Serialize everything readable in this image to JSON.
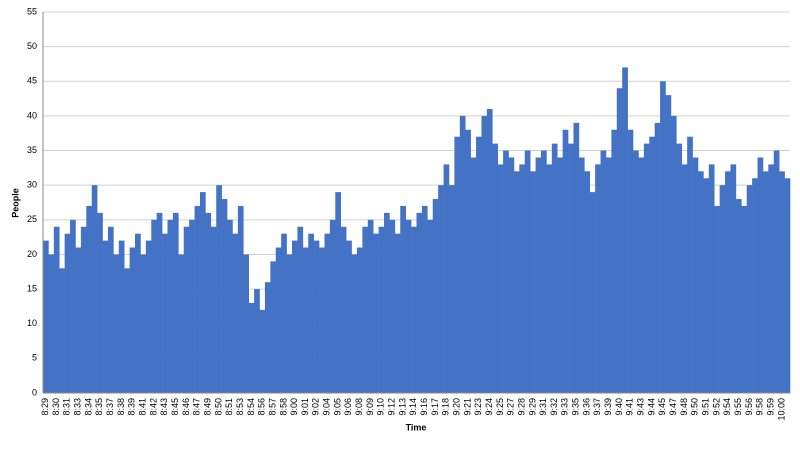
{
  "chart_data": {
    "type": "bar",
    "x_label": "Time",
    "y_label": "People",
    "categories": [
      "8:29",
      null,
      "8:30",
      null,
      "8:31",
      null,
      "8:33",
      null,
      "8:34",
      null,
      "8:35",
      null,
      "8:37",
      null,
      "8:38",
      null,
      "8:39",
      null,
      "8:41",
      null,
      "8:42",
      null,
      "8:43",
      null,
      "8:45",
      null,
      "8:46",
      null,
      "8:47",
      null,
      "8:49",
      null,
      "8:50",
      null,
      "8:51",
      null,
      "8:53",
      null,
      "8:54",
      null,
      "8:56",
      null,
      "8:57",
      null,
      "8:58",
      null,
      "9:00",
      null,
      "9:01",
      null,
      "9:02",
      null,
      "9:04",
      null,
      "9:05",
      null,
      "9:06",
      null,
      "9:08",
      null,
      "9:09",
      null,
      "9:10",
      null,
      "9:12",
      null,
      "9:13",
      null,
      "9:14",
      null,
      "9:16",
      null,
      "9:17",
      null,
      "9:18",
      null,
      "9:20",
      null,
      "9:21",
      null,
      "9:23",
      null,
      "9:24",
      null,
      "9:25",
      null,
      "9:27",
      null,
      "9:28",
      null,
      "9:29",
      null,
      "9:31",
      null,
      "9:32",
      null,
      "9:33",
      null,
      "9:35",
      null,
      "9:36",
      null,
      "9:37",
      null,
      "9:39",
      null,
      "9:40",
      null,
      "9:41",
      null,
      "9:43",
      null,
      "9:44",
      null,
      "9:45",
      null,
      "9:47",
      null,
      "9:48",
      null,
      "9:50",
      null,
      "9:51",
      null,
      "9:52",
      null,
      "9:54",
      null,
      "9:55",
      null,
      "9:56",
      null,
      "9:58",
      null,
      "9:59",
      null,
      "10:00",
      null
    ],
    "values": [
      22,
      20,
      24,
      18,
      23,
      25,
      21,
      24,
      27,
      30,
      26,
      22,
      24,
      20,
      22,
      18,
      21,
      23,
      20,
      22,
      25,
      26,
      23,
      25,
      26,
      20,
      24,
      25,
      27,
      29,
      26,
      24,
      30,
      28,
      25,
      23,
      27,
      20,
      13,
      15,
      12,
      16,
      19,
      21,
      23,
      20,
      22,
      24,
      21,
      23,
      22,
      21,
      23,
      25,
      29,
      24,
      22,
      20,
      21,
      24,
      25,
      23,
      24,
      26,
      25,
      23,
      27,
      25,
      24,
      26,
      27,
      25,
      28,
      30,
      33,
      30,
      37,
      40,
      38,
      34,
      37,
      40,
      41,
      36,
      33,
      35,
      34,
      32,
      33,
      35,
      32,
      34,
      35,
      33,
      36,
      34,
      38,
      36,
      39,
      34,
      32,
      29,
      33,
      35,
      34,
      38,
      44,
      47,
      38,
      35,
      34,
      36,
      37,
      39,
      45,
      43,
      40,
      36,
      33,
      37,
      34,
      32,
      31,
      33,
      27,
      30,
      32,
      33,
      28,
      27,
      30,
      31,
      34,
      32,
      33,
      35,
      32,
      31
    ],
    "color": "#4472c4",
    "ylim": [
      0,
      55
    ],
    "yticks": [
      0,
      5,
      10,
      15,
      20,
      25,
      30,
      35,
      40,
      45,
      50,
      55
    ],
    "grid": true
  }
}
